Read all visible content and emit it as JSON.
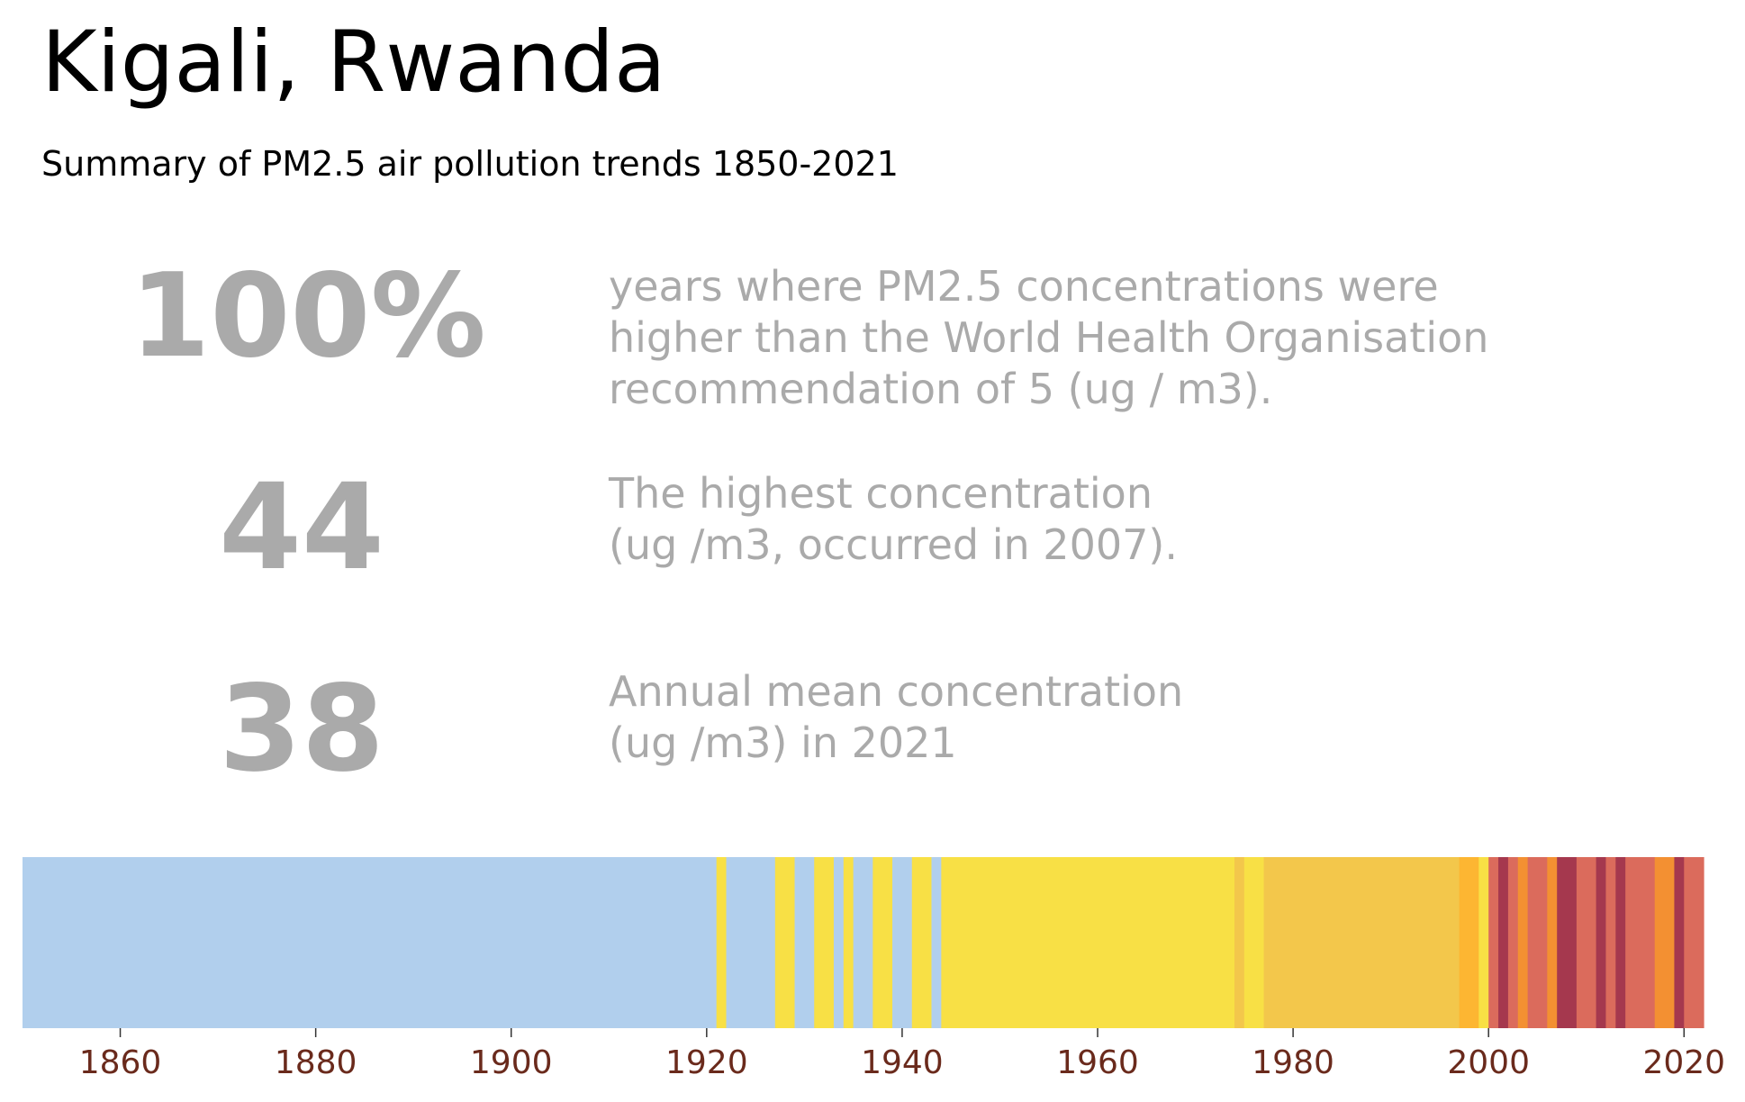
{
  "header": {
    "title": "Kigali, Rwanda",
    "subtitle": "Summary of PM2.5 air pollution trends 1850-2021"
  },
  "stats": [
    {
      "value": "100%",
      "desc": [
        "years where PM2.5 concentrations were",
        "higher than the World Health Organisation",
        "recommendation of 5 (ug / m3)."
      ]
    },
    {
      "value": "44",
      "desc": [
        "The highest concentration",
        "(ug /m3, occurred in 2007)."
      ]
    },
    {
      "value": "38",
      "desc": [
        "Annual mean concentration",
        "(ug /m3) in 2021"
      ]
    }
  ],
  "chart_data": {
    "type": "heatmap",
    "title": "",
    "xlabel": "",
    "ylabel": "",
    "xlim": [
      1850,
      2022
    ],
    "x_ticks": [
      1860,
      1880,
      1900,
      1920,
      1940,
      1960,
      1980,
      2000,
      2020
    ],
    "grid": false,
    "colors": {
      "light_blue": "#b1cfed",
      "yellow": "#f8e045",
      "light_orange": "#f3c74b",
      "amber": "#fdb632",
      "orange": "#f39032",
      "salmon": "#db6b5c",
      "dark_red": "#a5384e",
      "tick_label": "#6a2a1c"
    },
    "stripes": [
      {
        "start": 1850,
        "end": 1921,
        "color": "light_blue"
      },
      {
        "start": 1921,
        "end": 1922,
        "color": "yellow"
      },
      {
        "start": 1922,
        "end": 1927,
        "color": "light_blue"
      },
      {
        "start": 1927,
        "end": 1929,
        "color": "yellow"
      },
      {
        "start": 1929,
        "end": 1931,
        "color": "light_blue"
      },
      {
        "start": 1931,
        "end": 1933,
        "color": "yellow"
      },
      {
        "start": 1933,
        "end": 1934,
        "color": "light_blue"
      },
      {
        "start": 1934,
        "end": 1935,
        "color": "yellow"
      },
      {
        "start": 1935,
        "end": 1937,
        "color": "light_blue"
      },
      {
        "start": 1937,
        "end": 1939,
        "color": "yellow"
      },
      {
        "start": 1939,
        "end": 1941,
        "color": "light_blue"
      },
      {
        "start": 1941,
        "end": 1943,
        "color": "yellow"
      },
      {
        "start": 1943,
        "end": 1944,
        "color": "light_blue"
      },
      {
        "start": 1944,
        "end": 1974,
        "color": "yellow"
      },
      {
        "start": 1974,
        "end": 1975,
        "color": "light_orange"
      },
      {
        "start": 1975,
        "end": 1977,
        "color": "yellow"
      },
      {
        "start": 1977,
        "end": 1997,
        "color": "light_orange"
      },
      {
        "start": 1997,
        "end": 1999,
        "color": "amber"
      },
      {
        "start": 1999,
        "end": 2000,
        "color": "yellow"
      },
      {
        "start": 2000,
        "end": 2001,
        "color": "salmon"
      },
      {
        "start": 2001,
        "end": 2002,
        "color": "dark_red"
      },
      {
        "start": 2002,
        "end": 2003,
        "color": "salmon"
      },
      {
        "start": 2003,
        "end": 2004,
        "color": "orange"
      },
      {
        "start": 2004,
        "end": 2006,
        "color": "salmon"
      },
      {
        "start": 2006,
        "end": 2007,
        "color": "orange"
      },
      {
        "start": 2007,
        "end": 2009,
        "color": "dark_red"
      },
      {
        "start": 2009,
        "end": 2011,
        "color": "salmon"
      },
      {
        "start": 2011,
        "end": 2012,
        "color": "dark_red"
      },
      {
        "start": 2012,
        "end": 2013,
        "color": "salmon"
      },
      {
        "start": 2013,
        "end": 2014,
        "color": "dark_red"
      },
      {
        "start": 2014,
        "end": 2017,
        "color": "salmon"
      },
      {
        "start": 2017,
        "end": 2019,
        "color": "orange"
      },
      {
        "start": 2019,
        "end": 2020,
        "color": "dark_red"
      },
      {
        "start": 2020,
        "end": 2022,
        "color": "salmon"
      }
    ]
  }
}
